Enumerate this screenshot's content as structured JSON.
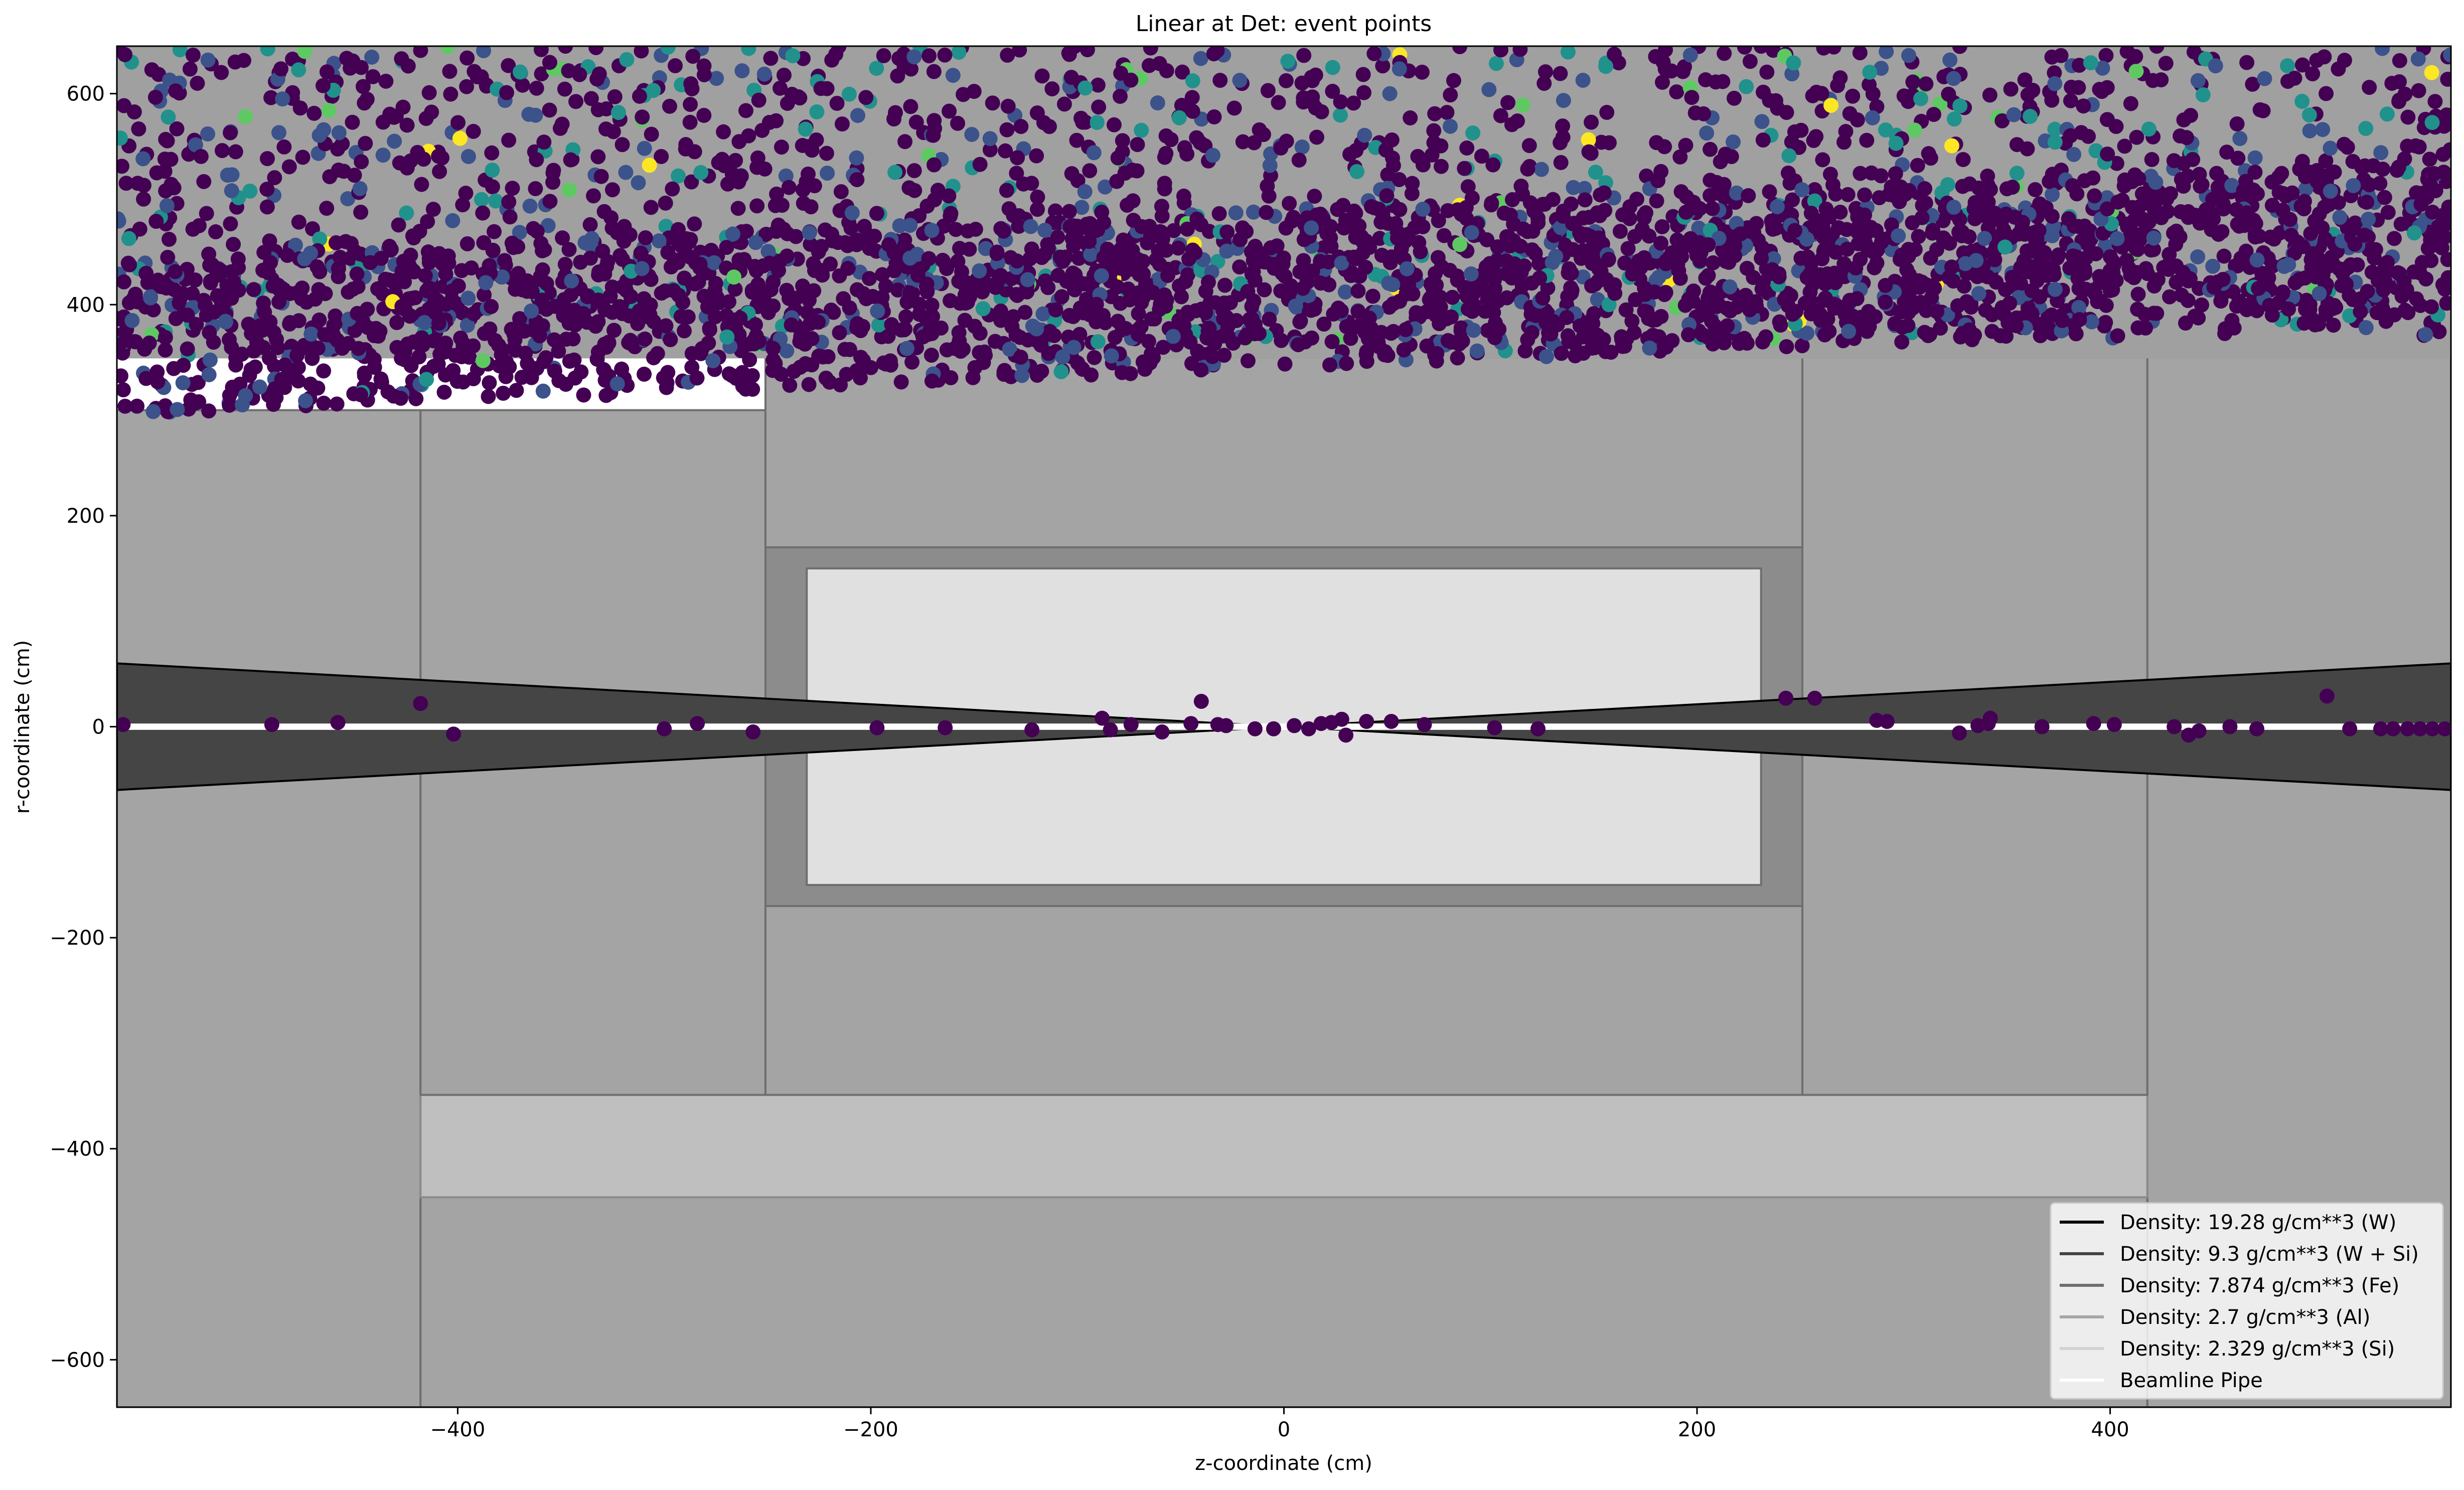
{
  "chart_data": {
    "type": "scatter",
    "title": "Linear at Det: event points",
    "xlabel": "z-coordinate (cm)",
    "ylabel": "r-coordinate (cm)",
    "xlim": [
      -565,
      565
    ],
    "ylim": [
      -645,
      645
    ],
    "xticks": [
      {
        "value": -400,
        "label": "−400"
      },
      {
        "value": -200,
        "label": "−200"
      },
      {
        "value": 0,
        "label": "0"
      },
      {
        "value": 200,
        "label": "200"
      },
      {
        "value": 400,
        "label": "400"
      }
    ],
    "yticks": [
      {
        "value": -600,
        "label": "−600"
      },
      {
        "value": -400,
        "label": "−400"
      },
      {
        "value": -200,
        "label": "−200"
      },
      {
        "value": 0,
        "label": "0"
      },
      {
        "value": 200,
        "label": "200"
      },
      {
        "value": 400,
        "label": "400"
      },
      {
        "value": 600,
        "label": "600"
      }
    ],
    "grid": false,
    "legend_position": "bottom-right",
    "legend": [
      {
        "label": "Density: 19.28 g/cm**3 (W)",
        "color": "#000000"
      },
      {
        "label": "Density: 9.3 g/cm**3 (W + Si)",
        "color": "#444444"
      },
      {
        "label": "Density: 7.874 g/cm**3 (Fe)",
        "color": "#6e6e6e"
      },
      {
        "label": "Density: 2.7 g/cm**3 (Al)",
        "color": "#a6a6a6"
      },
      {
        "label": "Density: 2.329 g/cm**3 (Si)",
        "color": "#d3d3d3"
      },
      {
        "label": "Beamline Pipe",
        "color": "#ffffff"
      }
    ],
    "detector_regions": [
      {
        "material": "Fe",
        "z": [
          -565,
          -418
        ],
        "r": [
          -645,
          300
        ],
        "fill": "#a4a4a4",
        "stroke": "#6e6e6e"
      },
      {
        "material": "Fe",
        "z": [
          418,
          565
        ],
        "r": [
          -645,
          380
        ],
        "fill": "#a4a4a4",
        "stroke": "#6e6e6e"
      },
      {
        "material": "Fe",
        "z": [
          -418,
          418
        ],
        "r": [
          -645,
          -446
        ],
        "fill": "#a4a4a4",
        "stroke": "#6e6e6e"
      },
      {
        "material": "Al",
        "z": [
          -418,
          418
        ],
        "r": [
          -446,
          -349
        ],
        "fill": "#bfbfbf",
        "stroke": "#8a8a8a"
      },
      {
        "material": "Fe",
        "z": [
          -418,
          -251
        ],
        "r": [
          -349,
          300
        ],
        "fill": "#a4a4a4",
        "stroke": "#6e6e6e"
      },
      {
        "material": "Fe",
        "z": [
          251,
          418
        ],
        "r": [
          -349,
          350
        ],
        "fill": "#a4a4a4",
        "stroke": "#6e6e6e"
      },
      {
        "material": "Fe",
        "z": [
          -251,
          251
        ],
        "r": [
          170,
          350
        ],
        "fill": "#a4a4a4",
        "stroke": "#6e6e6e"
      },
      {
        "material": "Fe",
        "z": [
          -251,
          251
        ],
        "r": [
          -349,
          -170
        ],
        "fill": "#a4a4a4",
        "stroke": "#6e6e6e"
      },
      {
        "material": "W + Si",
        "z": [
          -251,
          251
        ],
        "r": [
          -170,
          170
        ],
        "fill": "#8c8c8c",
        "stroke": "#6e6e6e"
      },
      {
        "material": "Si",
        "z": [
          -231,
          231
        ],
        "r": [
          -150,
          150
        ],
        "fill": "#e0e0e0",
        "stroke": "#6e6e6e"
      },
      {
        "material": "Al",
        "z": [
          -565,
          565
        ],
        "r": [
          350,
          645
        ],
        "fill": "#a0a0a0",
        "stroke": "#a0a0a0"
      }
    ],
    "tungsten_cone": {
      "z_edge": 565,
      "r_edge": 60,
      "fill": "#454545",
      "stroke": "#000000"
    },
    "beamline_pipe": {
      "r_half": 3,
      "color": "#ffffff"
    },
    "color_scale": [
      "#440154",
      "#3b528b",
      "#21918c",
      "#5ec962",
      "#fde725"
    ],
    "point_series": [
      {
        "name": "",
        "z_range": [
          -565,
          565
        ],
        "r_inner": [
          350,
          370
        ],
        "r_outer": 645,
        "points": 1900,
        "color_weights": [
          0.72,
          0.17,
          0.08,
          0.02,
          0.01
        ]
      },
      {
        "name": "",
        "z_range": [
          -565,
          565
        ],
        "r_inner": [
          295,
          385
        ],
        "r_band": 150,
        "points": 2200,
        "color_weights": [
          0.88,
          0.1,
          0.015,
          0.004,
          0.001
        ]
      }
    ],
    "axis_points": [
      {
        "z": -562,
        "r": 2
      },
      {
        "z": -490,
        "r": 2
      },
      {
        "z": -458,
        "r": 4
      },
      {
        "z": -418,
        "r": 22
      },
      {
        "z": -402,
        "r": -7
      },
      {
        "z": -300,
        "r": -2
      },
      {
        "z": -284,
        "r": 3
      },
      {
        "z": -257,
        "r": -5
      },
      {
        "z": -197,
        "r": -1
      },
      {
        "z": -164,
        "r": -1
      },
      {
        "z": -122,
        "r": -3
      },
      {
        "z": -88,
        "r": 8
      },
      {
        "z": -84,
        "r": -3
      },
      {
        "z": -74,
        "r": 2
      },
      {
        "z": -59,
        "r": -5
      },
      {
        "z": -45,
        "r": 3
      },
      {
        "z": -40,
        "r": 24
      },
      {
        "z": -32,
        "r": 2
      },
      {
        "z": -28,
        "r": 1
      },
      {
        "z": -14,
        "r": -2
      },
      {
        "z": -5,
        "r": -2
      },
      {
        "z": 5,
        "r": 1
      },
      {
        "z": 12,
        "r": -2
      },
      {
        "z": 18,
        "r": 3
      },
      {
        "z": 23,
        "r": 4
      },
      {
        "z": 28,
        "r": 7
      },
      {
        "z": 30,
        "r": -8
      },
      {
        "z": 40,
        "r": 5
      },
      {
        "z": 52,
        "r": 5
      },
      {
        "z": 68,
        "r": 2
      },
      {
        "z": 102,
        "r": -1
      },
      {
        "z": 123,
        "r": -2
      },
      {
        "z": 243,
        "r": 27
      },
      {
        "z": 257,
        "r": 27
      },
      {
        "z": 287,
        "r": 6
      },
      {
        "z": 292,
        "r": 5
      },
      {
        "z": 327,
        "r": -6
      },
      {
        "z": 336,
        "r": 1
      },
      {
        "z": 341,
        "r": 3
      },
      {
        "z": 342,
        "r": 8
      },
      {
        "z": 367,
        "r": 0
      },
      {
        "z": 392,
        "r": 3
      },
      {
        "z": 402,
        "r": 2
      },
      {
        "z": 431,
        "r": 0
      },
      {
        "z": 438,
        "r": -8
      },
      {
        "z": 443,
        "r": -4
      },
      {
        "z": 458,
        "r": 0
      },
      {
        "z": 471,
        "r": -2
      },
      {
        "z": 505,
        "r": 29
      },
      {
        "z": 516,
        "r": -2
      },
      {
        "z": 531,
        "r": -2
      },
      {
        "z": 537,
        "r": -2
      },
      {
        "z": 544,
        "r": -2
      },
      {
        "z": 550,
        "r": -2
      },
      {
        "z": 556,
        "r": -2
      },
      {
        "z": 562,
        "r": -2
      }
    ]
  }
}
